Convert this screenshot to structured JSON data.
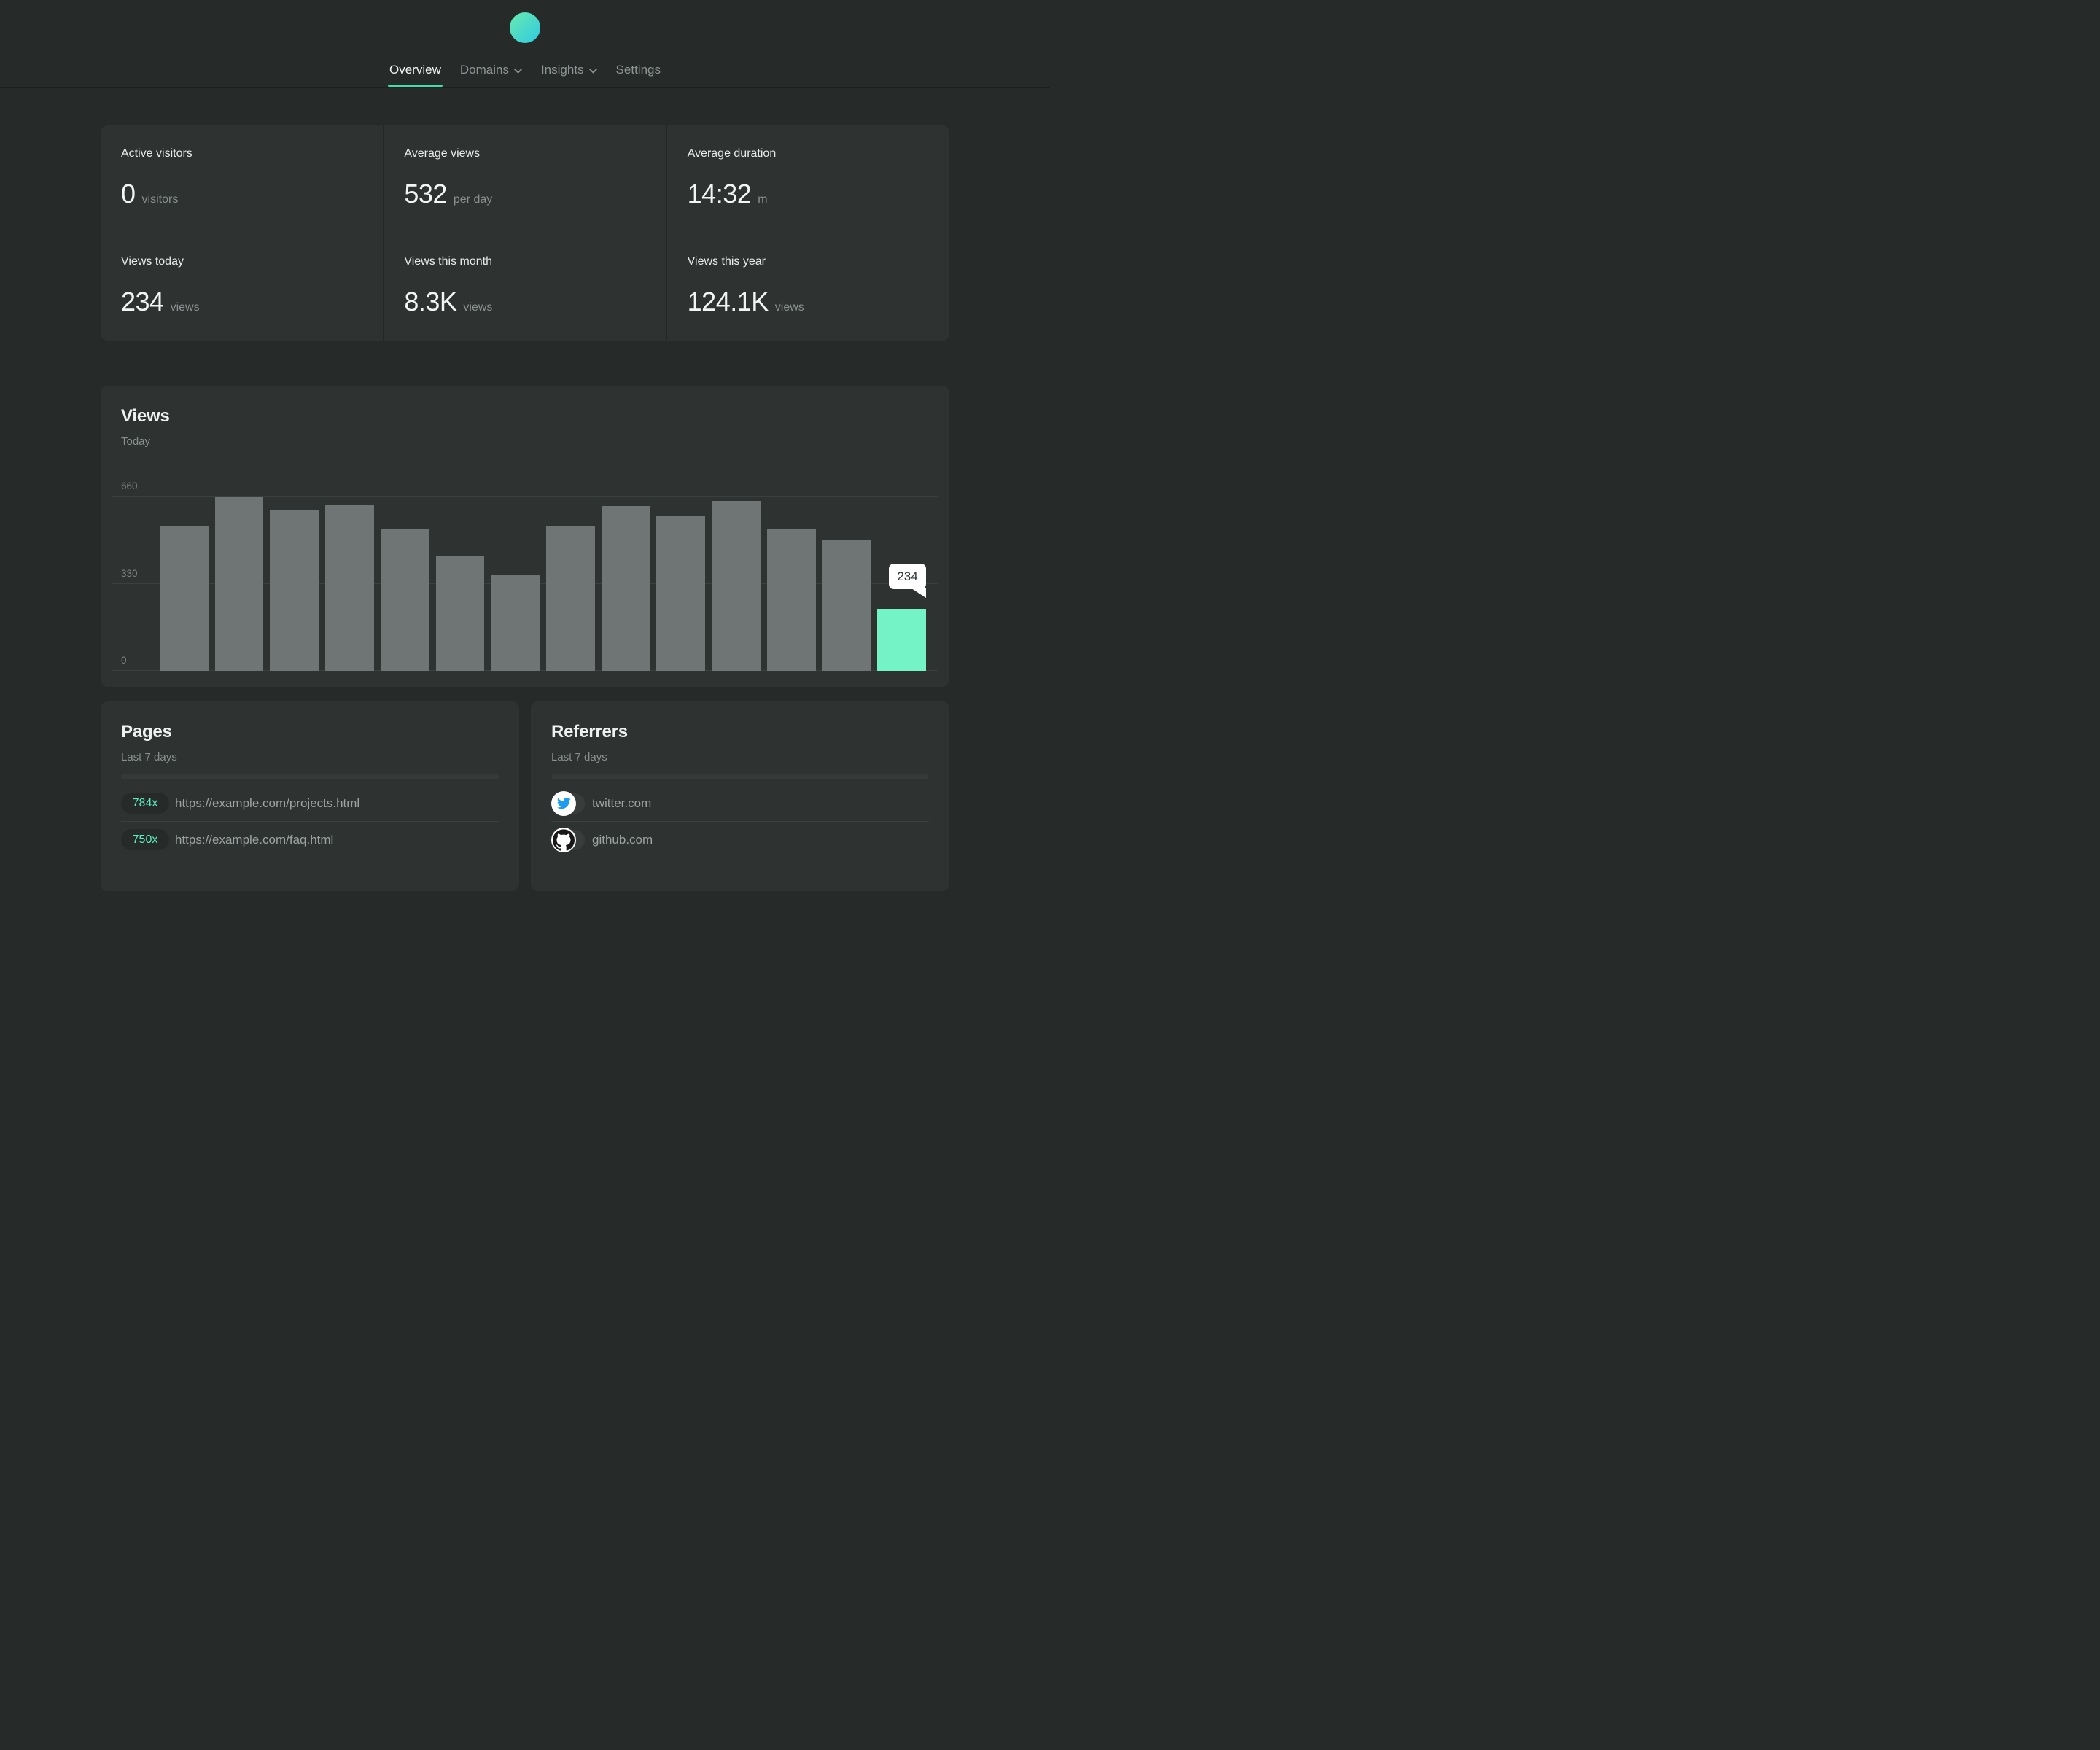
{
  "nav": {
    "items": [
      {
        "label": "Overview",
        "active": true
      },
      {
        "label": "Domains",
        "has_dropdown": true
      },
      {
        "label": "Insights",
        "has_dropdown": true
      },
      {
        "label": "Settings",
        "has_dropdown": false
      }
    ]
  },
  "stats": [
    {
      "label": "Active visitors",
      "value": "0",
      "unit": "visitors"
    },
    {
      "label": "Average views",
      "value": "532",
      "unit": "per day"
    },
    {
      "label": "Average duration",
      "value": "14:32",
      "unit": "m"
    },
    {
      "label": "Views today",
      "value": "234",
      "unit": "views"
    },
    {
      "label": "Views this month",
      "value": "8.3K",
      "unit": "views"
    },
    {
      "label": "Views this year",
      "value": "124.1K",
      "unit": "views"
    }
  ],
  "views_card": {
    "title": "Views",
    "subtitle": "Today"
  },
  "chart_data": {
    "type": "bar",
    "title": "Views",
    "subtitle": "Today",
    "values": [
      547,
      655,
      608,
      628,
      535,
      435,
      364,
      547,
      622,
      587,
      640,
      536,
      493,
      234
    ],
    "categories": [],
    "yticks": [
      0,
      330,
      660
    ],
    "ylim": [
      0,
      660
    ],
    "grid": "horizontal",
    "highlight_index": 13,
    "highlight_label": "234",
    "bar_color": "#6e7574",
    "highlight_color": "#74f3c6"
  },
  "pages_card": {
    "title": "Pages",
    "subtitle": "Last 7 days",
    "rows": [
      {
        "count": "784x",
        "url": "https://example.com/projects.html"
      },
      {
        "count": "750x",
        "url": "https://example.com/faq.html"
      }
    ]
  },
  "referrers_card": {
    "title": "Referrers",
    "subtitle": "Last 7 days",
    "rows": [
      {
        "icon": "twitter-icon",
        "domain": "twitter.com"
      },
      {
        "icon": "github-icon",
        "domain": "github.com"
      }
    ]
  },
  "colors": {
    "accent": "#3fe0ac",
    "bar_gray": "#6e7574",
    "bar_teal": "#74f3c6",
    "pill_text": "#5beec0",
    "tooltip_bg": "#ffffff",
    "logo_gradient": [
      "#68ebae",
      "#2fc9e1"
    ]
  }
}
